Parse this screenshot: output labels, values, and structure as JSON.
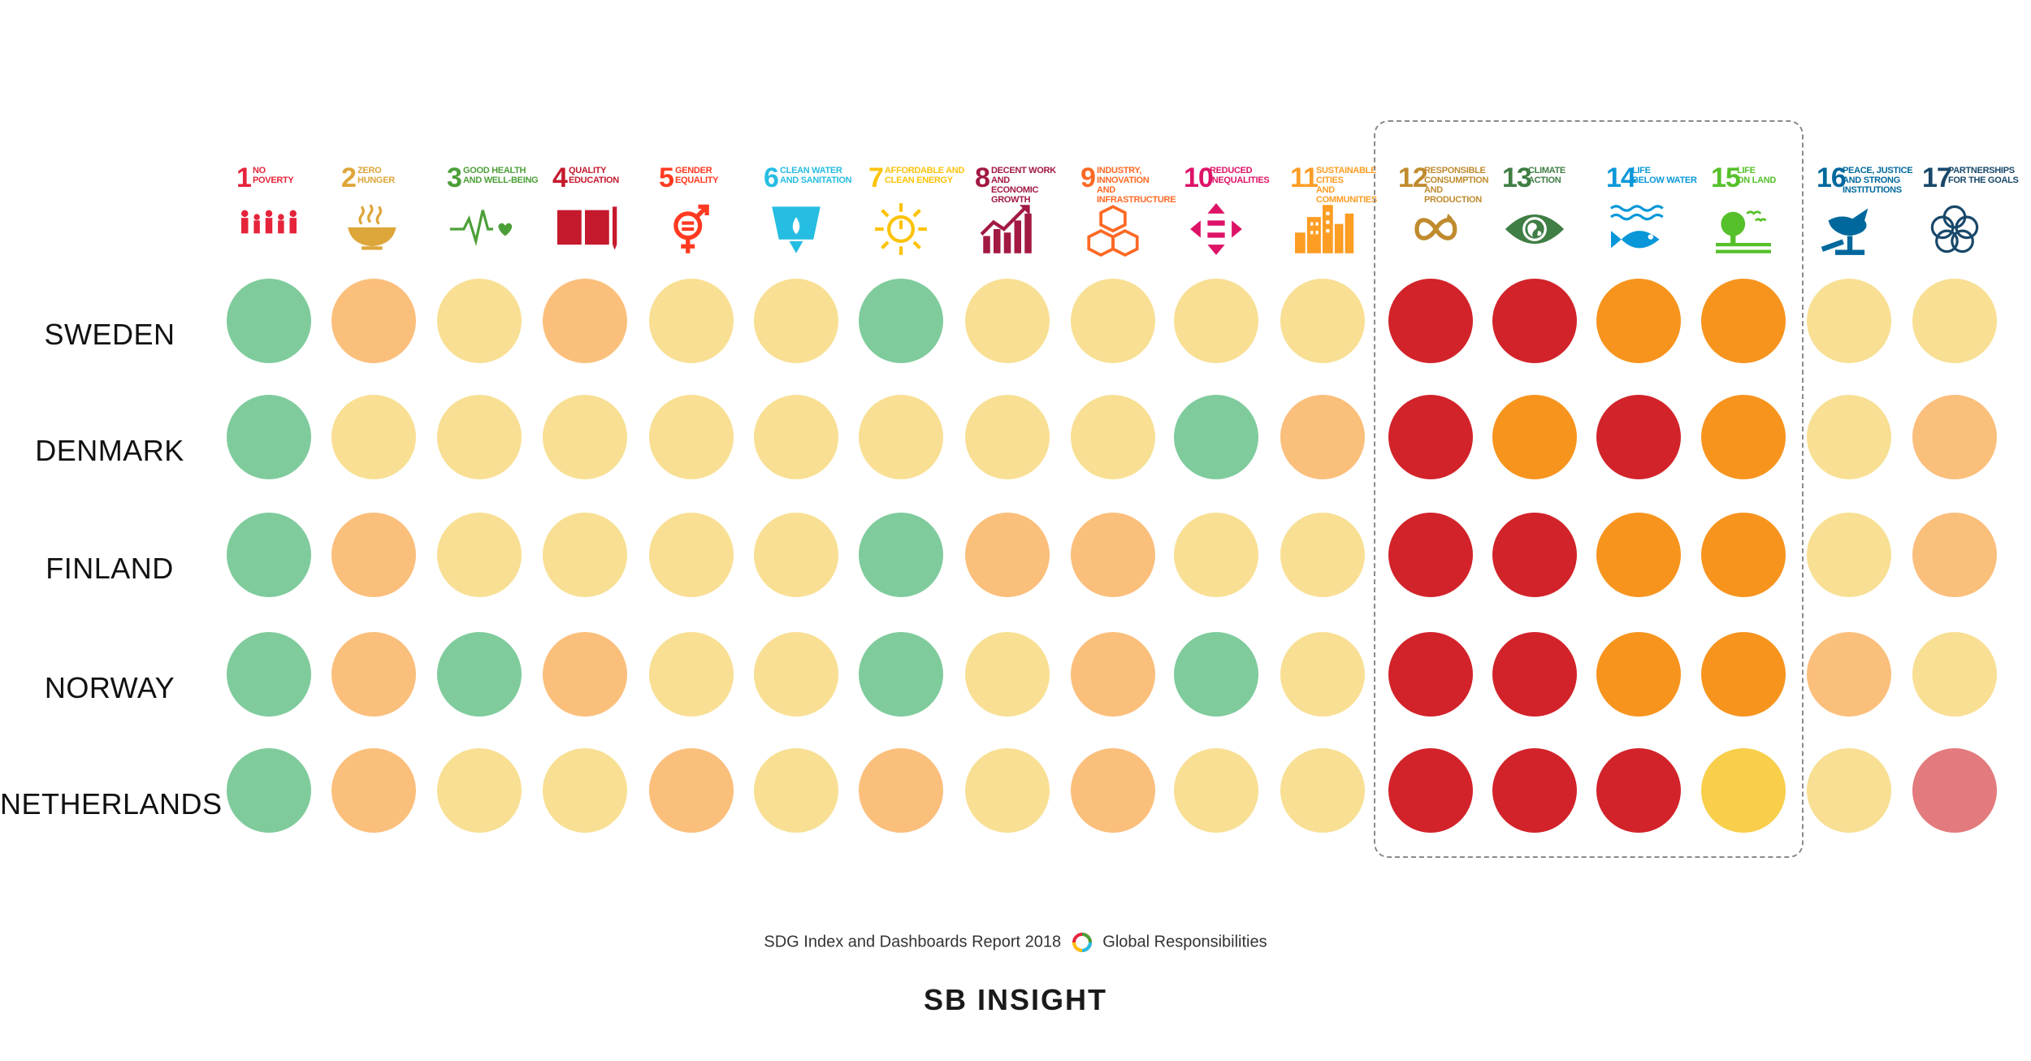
{
  "chart_data": {
    "type": "heatmap",
    "goals": [
      {
        "number": "1",
        "name": "NO\nPOVERTY",
        "color": "#E5243B",
        "icon": "people-icon"
      },
      {
        "number": "2",
        "name": "ZERO\nHUNGER",
        "color": "#DDA63A",
        "icon": "bowl-icon"
      },
      {
        "number": "3",
        "name": "GOOD HEALTH\nAND WELL-BEING",
        "color": "#4C9F38",
        "icon": "heartbeat-icon"
      },
      {
        "number": "4",
        "name": "QUALITY\nEDUCATION",
        "color": "#C5192D",
        "icon": "book-icon"
      },
      {
        "number": "5",
        "name": "GENDER\nEQUALITY",
        "color": "#FF3A21",
        "icon": "gender-icon"
      },
      {
        "number": "6",
        "name": "CLEAN WATER\nAND SANITATION",
        "color": "#26BDE2",
        "icon": "water-drop-icon"
      },
      {
        "number": "7",
        "name": "AFFORDABLE AND\nCLEAN ENERGY",
        "color": "#FCC30B",
        "icon": "sun-power-icon"
      },
      {
        "number": "8",
        "name": "DECENT WORK AND\nECONOMIC GROWTH",
        "color": "#A21942",
        "icon": "growth-chart-icon"
      },
      {
        "number": "9",
        "name": "INDUSTRY, INNOVATION\nAND INFRASTRUCTURE",
        "color": "#FD6925",
        "icon": "cubes-icon"
      },
      {
        "number": "10",
        "name": "REDUCED\nINEQUALITIES",
        "color": "#DD1367",
        "icon": "arrows-equal-icon"
      },
      {
        "number": "11",
        "name": "SUSTAINABLE CITIES\nAND COMMUNITIES",
        "color": "#FD9D24",
        "icon": "city-icon"
      },
      {
        "number": "12",
        "name": "RESPONSIBLE\nCONSUMPTION\nAND PRODUCTION",
        "color": "#BF8B2E",
        "icon": "infinity-icon"
      },
      {
        "number": "13",
        "name": "CLIMATE\nACTION",
        "color": "#3F7E44",
        "icon": "eye-globe-icon"
      },
      {
        "number": "14",
        "name": "LIFE\nBELOW WATER",
        "color": "#0A97D9",
        "icon": "fish-icon"
      },
      {
        "number": "15",
        "name": "LIFE\nON LAND",
        "color": "#56C02B",
        "icon": "tree-icon"
      },
      {
        "number": "16",
        "name": "PEACE, JUSTICE\nAND STRONG\nINSTITUTIONS",
        "color": "#00689D",
        "icon": "dove-gavel-icon"
      },
      {
        "number": "17",
        "name": "PARTNERSHIPS\nFOR THE GOALS",
        "color": "#19486A",
        "icon": "rings-icon"
      }
    ],
    "rows": [
      {
        "country": "SWEDEN",
        "ratings": [
          "G",
          "LO",
          "Y",
          "LO",
          "Y",
          "Y",
          "G",
          "Y",
          "Y",
          "Y",
          "Y",
          "R",
          "R",
          "O",
          "O",
          "Y",
          "Y"
        ]
      },
      {
        "country": "DENMARK",
        "ratings": [
          "G",
          "Y",
          "Y",
          "Y",
          "Y",
          "Y",
          "Y",
          "Y",
          "Y",
          "G",
          "LO",
          "R",
          "O",
          "R",
          "O",
          "Y",
          "LO"
        ]
      },
      {
        "country": "FINLAND",
        "ratings": [
          "G",
          "LO",
          "Y",
          "Y",
          "Y",
          "Y",
          "G",
          "LO",
          "LO",
          "Y",
          "Y",
          "R",
          "R",
          "O",
          "O",
          "Y",
          "LO"
        ]
      },
      {
        "country": "NORWAY",
        "ratings": [
          "G",
          "LO",
          "G",
          "LO",
          "Y",
          "Y",
          "G",
          "Y",
          "LO",
          "G",
          "Y",
          "R",
          "R",
          "O",
          "O",
          "LO",
          "Y"
        ]
      },
      {
        "country": "NETHERLANDS",
        "ratings": [
          "G",
          "LO",
          "Y",
          "Y",
          "LO",
          "Y",
          "LO",
          "Y",
          "LO",
          "Y",
          "Y",
          "R",
          "R",
          "R",
          "YD",
          "Y",
          "P"
        ]
      }
    ],
    "rating_colors": {
      "G": "#7FCB9C",
      "Y": "#F8DF93",
      "LO": "#FBBF7C",
      "O": "#F7941E",
      "R": "#D2232A",
      "YD": "#F8CE4B",
      "P": "#E37A7D"
    },
    "highlighted_goals": [
      "12",
      "13",
      "14",
      "15"
    ]
  },
  "footer": {
    "source": "SDG Index and Dashboards Report 2018",
    "partner": "Global Responsibilities",
    "brand": "SB INSIGHT"
  }
}
